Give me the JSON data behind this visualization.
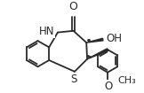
{
  "bg_color": "#ffffff",
  "line_color": "#2a2a2a",
  "bond_lw": 1.3,
  "font_size": 8.5,
  "figsize": [
    1.62,
    1.05
  ],
  "dpi": 100,
  "xlim": [
    -1.6,
    1.6
  ],
  "ylim": [
    -1.05,
    1.05
  ]
}
